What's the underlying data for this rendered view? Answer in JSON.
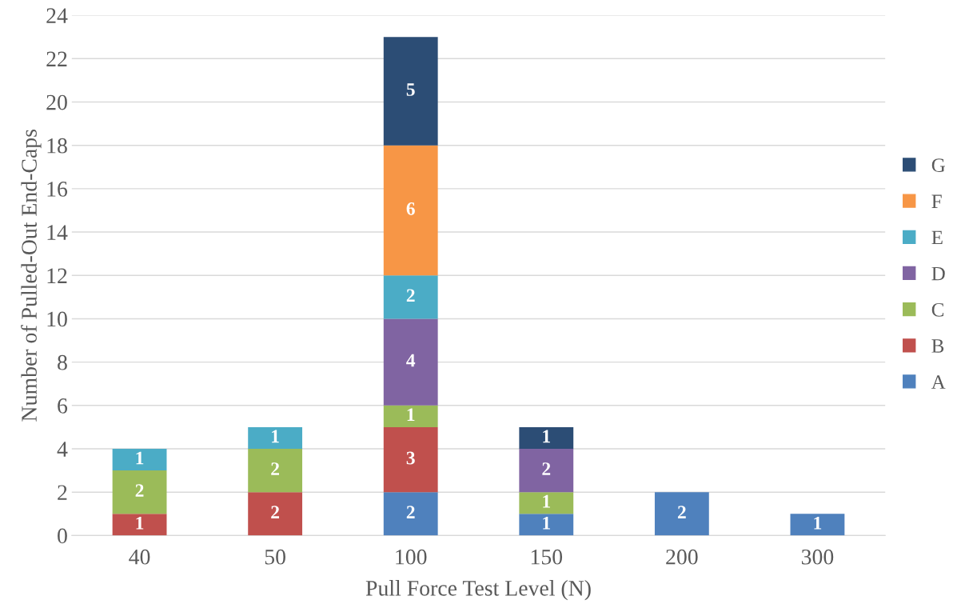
{
  "chart_data": {
    "type": "bar",
    "stacked": true,
    "xlabel": "Pull Force Test Level (N)",
    "ylabel": "Number of Pulled-Out End-Caps",
    "categories": [
      "40",
      "50",
      "100",
      "150",
      "200",
      "300"
    ],
    "series": [
      {
        "name": "A",
        "color": "#4f81bd",
        "values": [
          null,
          null,
          2,
          1,
          2,
          1
        ]
      },
      {
        "name": "B",
        "color": "#c0504d",
        "values": [
          1,
          2,
          3,
          null,
          null,
          null
        ]
      },
      {
        "name": "C",
        "color": "#9bbb59",
        "values": [
          2,
          2,
          1,
          1,
          null,
          null
        ]
      },
      {
        "name": "D",
        "color": "#8064a2",
        "values": [
          null,
          null,
          4,
          2,
          null,
          null
        ]
      },
      {
        "name": "E",
        "color": "#4bacc6",
        "values": [
          1,
          1,
          2,
          null,
          null,
          null
        ]
      },
      {
        "name": "F",
        "color": "#f79646",
        "values": [
          null,
          null,
          6,
          null,
          null,
          null
        ]
      },
      {
        "name": "G",
        "color": "#2c4d75",
        "values": [
          null,
          null,
          5,
          1,
          null,
          null
        ]
      }
    ],
    "ylim": [
      0,
      24
    ],
    "yticks": [
      0,
      2,
      4,
      6,
      8,
      10,
      12,
      14,
      16,
      18,
      20,
      22,
      24
    ],
    "grid": "y",
    "legend": "right",
    "data_labels": true
  }
}
